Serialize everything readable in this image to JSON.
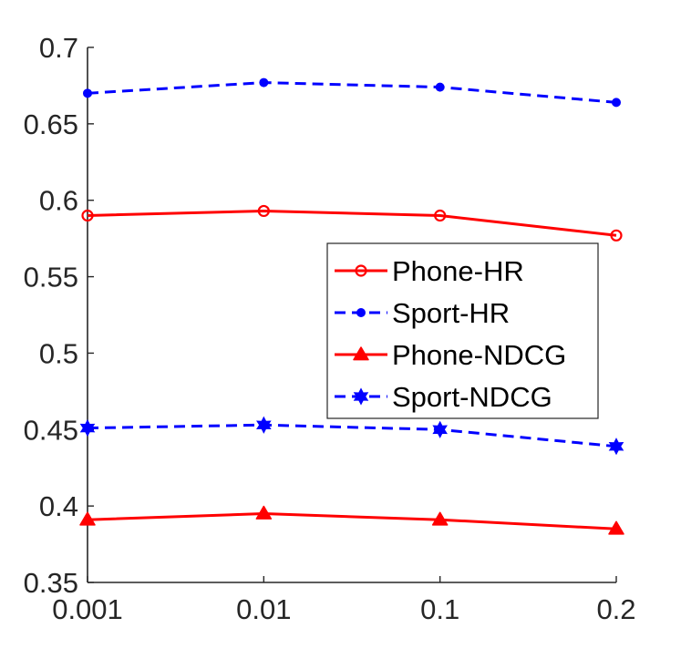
{
  "chart_data": {
    "type": "line",
    "title": "",
    "xlabel": "",
    "ylabel": "",
    "x_scale": "categorical",
    "categories": [
      "0.001",
      "0.01",
      "0.1",
      "0.2"
    ],
    "ylim": [
      0.35,
      0.7
    ],
    "y_ticks": [
      "0.35",
      "0.4",
      "0.45",
      "0.5",
      "0.55",
      "0.6",
      "0.65",
      "0.7"
    ],
    "grid": false,
    "legend_position": "center-right",
    "series": [
      {
        "name": "Phone-HR",
        "values": [
          0.59,
          0.593,
          0.59,
          0.577
        ],
        "color": "#ff0000",
        "line_style": "solid",
        "marker": "circle-open"
      },
      {
        "name": "Sport-HR",
        "values": [
          0.67,
          0.677,
          0.674,
          0.664
        ],
        "color": "#0000ff",
        "line_style": "dashed",
        "marker": "dot"
      },
      {
        "name": "Phone-NDCG",
        "values": [
          0.391,
          0.395,
          0.391,
          0.385
        ],
        "color": "#ff0000",
        "line_style": "solid",
        "marker": "triangle"
      },
      {
        "name": "Sport-NDCG",
        "values": [
          0.451,
          0.453,
          0.45,
          0.439
        ],
        "color": "#0000ff",
        "line_style": "dashed",
        "marker": "hexagram"
      }
    ]
  }
}
